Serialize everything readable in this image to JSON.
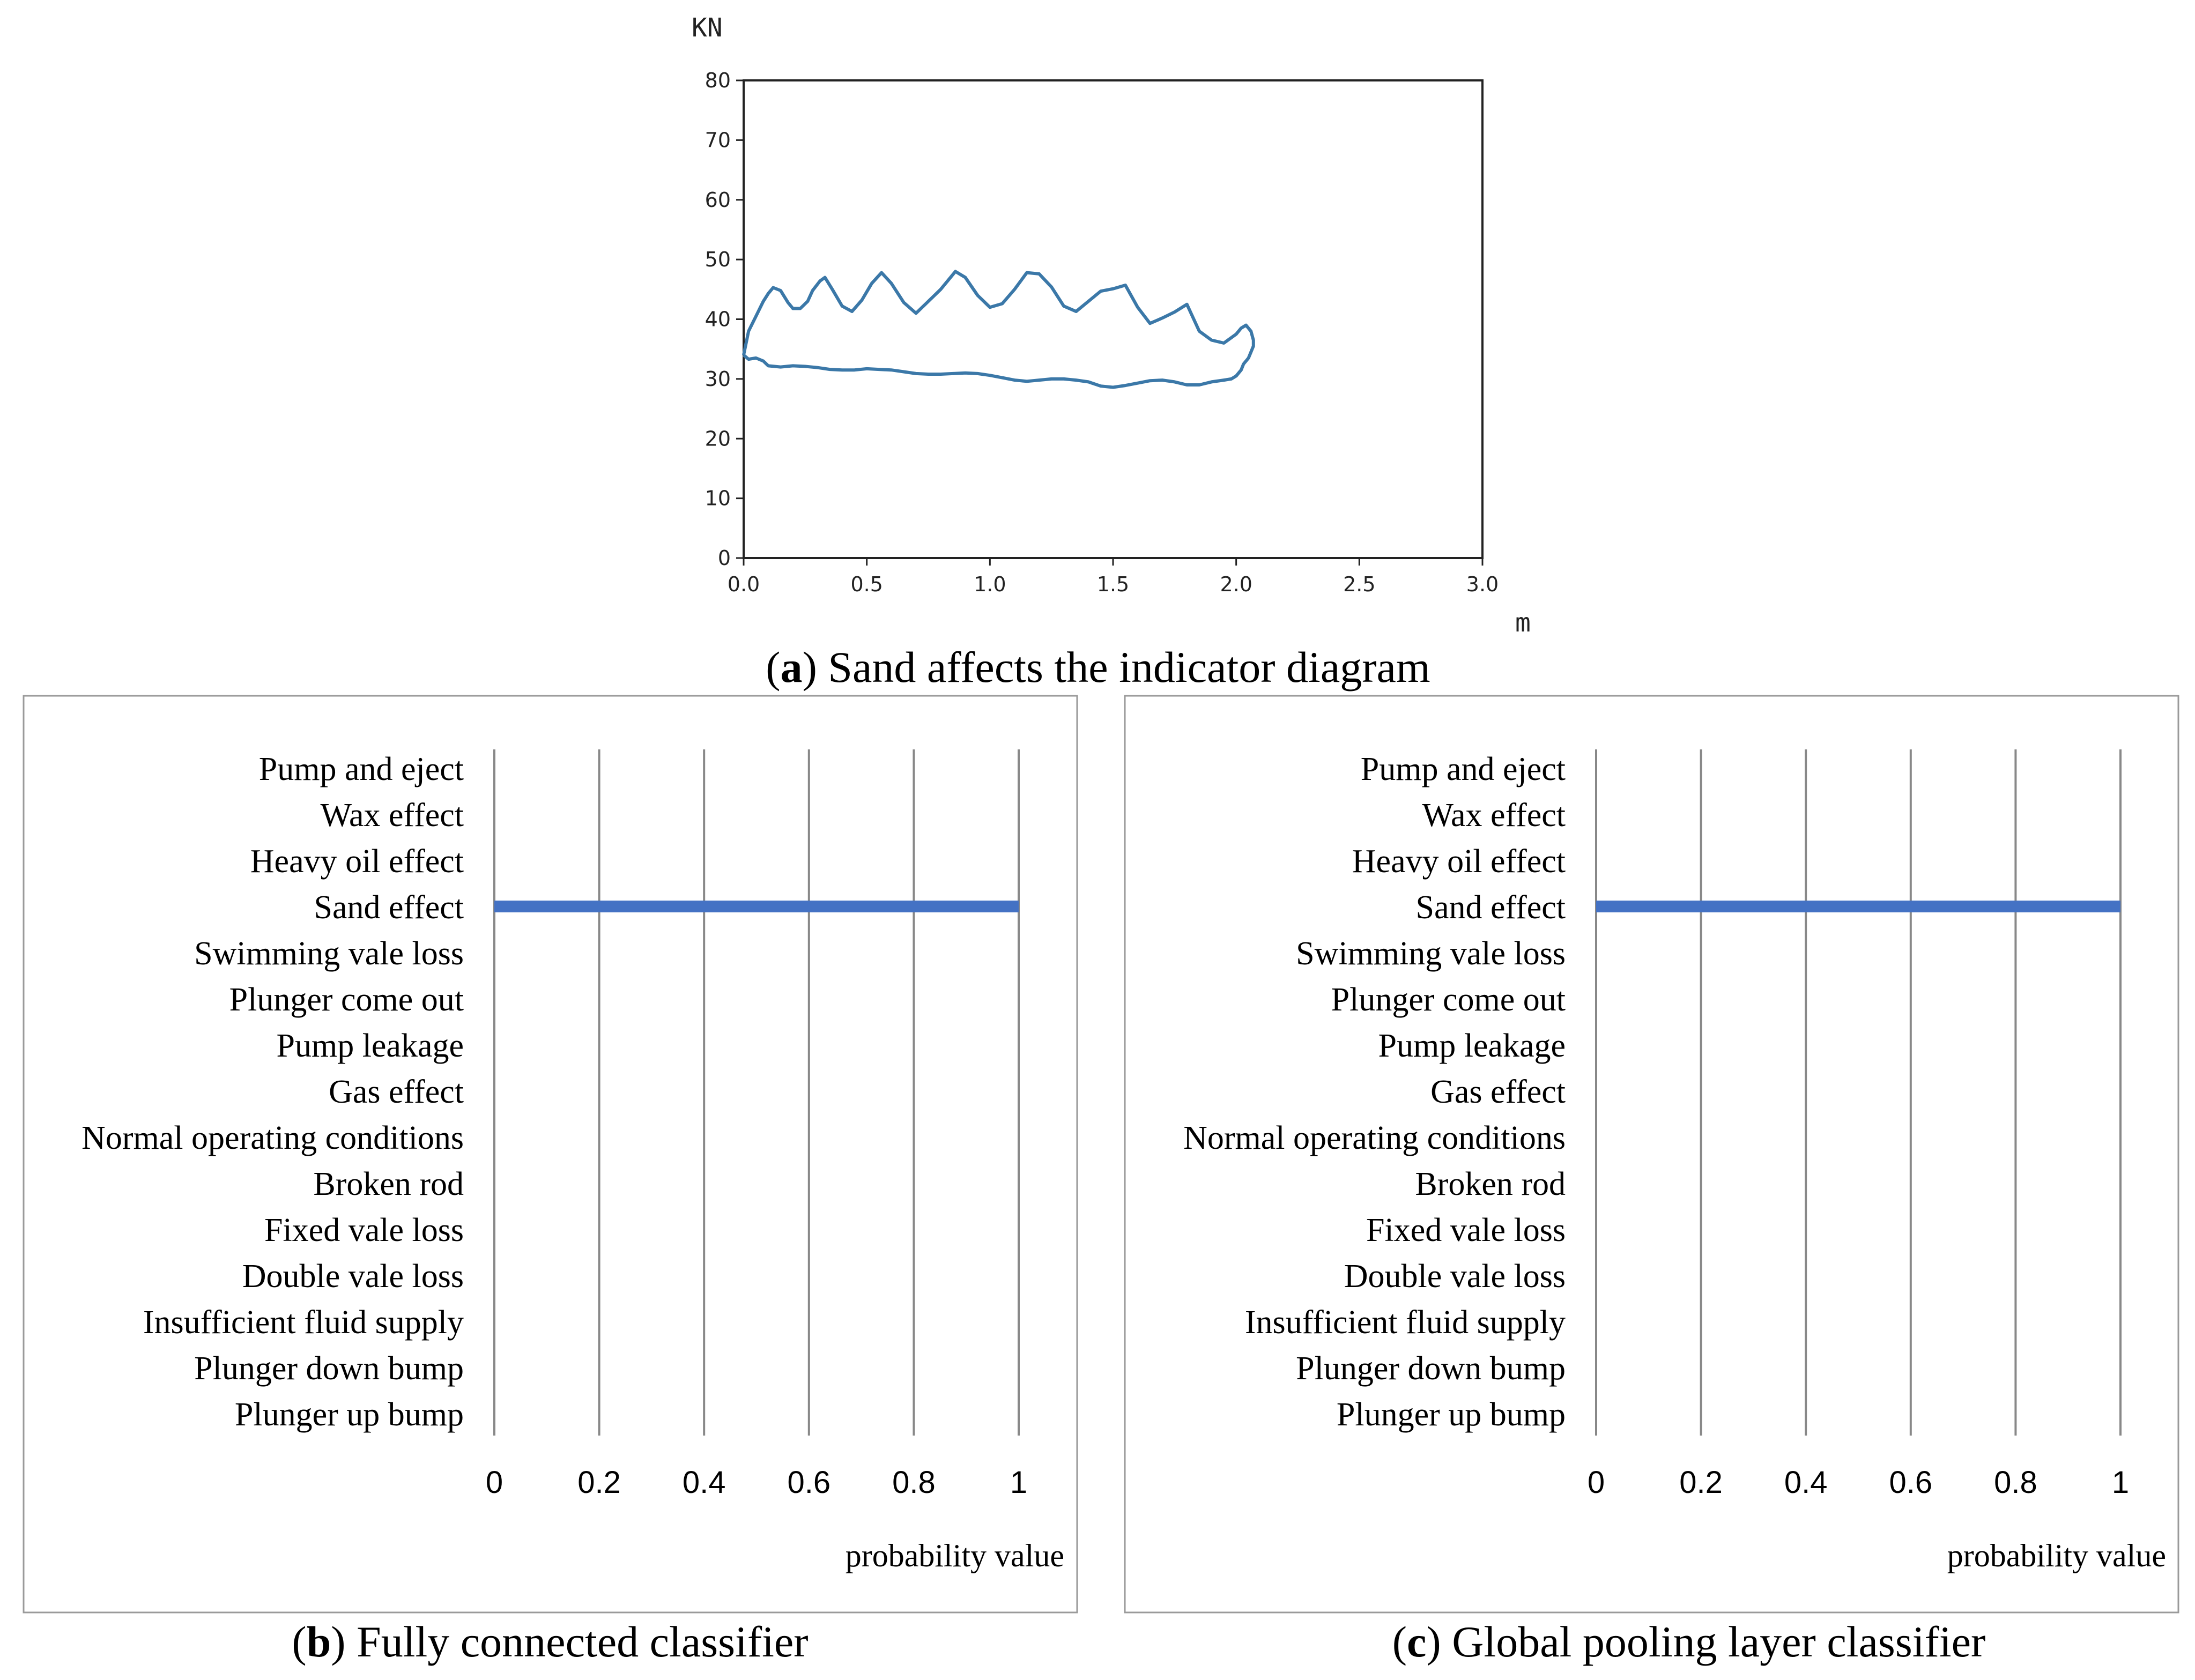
{
  "chart_data": [
    {
      "id": "a",
      "type": "line",
      "caption_letter": "a",
      "caption_text": " Sand affects the indicator diagram",
      "caption_open": "(",
      "caption_close": ")",
      "ylabel": "KN",
      "xlabel": "m",
      "xlim": [
        0,
        3.0
      ],
      "ylim": [
        0,
        80
      ],
      "xticks": [
        "0.0",
        "0.5",
        "1.0",
        "1.5",
        "2.0",
        "2.5",
        "3.0"
      ],
      "yticks": [
        "0",
        "10",
        "20",
        "30",
        "40",
        "50",
        "60",
        "70",
        "80"
      ],
      "color": "#3b78a8",
      "series": [
        {
          "name": "indicator",
          "x": [
            0.0,
            0.02,
            0.05,
            0.08,
            0.1,
            0.12,
            0.15,
            0.18,
            0.2,
            0.23,
            0.26,
            0.28,
            0.31,
            0.33,
            0.36,
            0.4,
            0.44,
            0.48,
            0.52,
            0.56,
            0.6,
            0.65,
            0.7,
            0.75,
            0.8,
            0.86,
            0.9,
            0.95,
            1.0,
            1.05,
            1.1,
            1.15,
            1.2,
            1.25,
            1.3,
            1.35,
            1.4,
            1.45,
            1.5,
            1.55,
            1.6,
            1.65,
            1.7,
            1.75,
            1.8,
            1.85,
            1.9,
            1.95,
            2.0,
            2.02,
            2.04,
            2.06,
            2.07,
            2.07,
            2.06,
            2.05,
            2.04,
            2.03,
            2.02,
            2.0,
            1.98,
            1.95,
            1.9,
            1.85,
            1.8,
            1.75,
            1.7,
            1.65,
            1.6,
            1.55,
            1.5,
            1.45,
            1.4,
            1.35,
            1.3,
            1.25,
            1.2,
            1.15,
            1.1,
            1.05,
            1.0,
            0.95,
            0.9,
            0.85,
            0.8,
            0.75,
            0.7,
            0.65,
            0.6,
            0.55,
            0.5,
            0.45,
            0.4,
            0.35,
            0.3,
            0.25,
            0.2,
            0.15,
            0.1,
            0.08,
            0.05,
            0.02,
            0.0
          ],
          "y": [
            34.0,
            38.0,
            40.5,
            43.0,
            44.3,
            45.3,
            44.8,
            42.8,
            41.8,
            41.8,
            43.0,
            44.8,
            46.4,
            47.0,
            45.0,
            42.2,
            41.3,
            43.2,
            46.0,
            47.8,
            46.0,
            42.8,
            41.0,
            43.0,
            45.0,
            48.0,
            47.0,
            44.0,
            42.0,
            42.6,
            45.0,
            47.8,
            47.6,
            45.4,
            42.2,
            41.3,
            43.0,
            44.7,
            45.1,
            45.7,
            42.0,
            39.3,
            40.2,
            41.2,
            42.5,
            38.0,
            36.5,
            36.0,
            37.5,
            38.5,
            39.0,
            38.0,
            36.5,
            35.5,
            34.5,
            33.5,
            33.0,
            32.5,
            31.5,
            30.5,
            30.0,
            29.8,
            29.5,
            29.0,
            29.0,
            29.5,
            29.8,
            29.7,
            29.3,
            28.9,
            28.6,
            28.8,
            29.5,
            29.8,
            30.0,
            30.0,
            29.8,
            29.6,
            29.8,
            30.2,
            30.6,
            30.9,
            31.0,
            30.9,
            30.8,
            30.8,
            30.9,
            31.2,
            31.5,
            31.6,
            31.7,
            31.5,
            31.5,
            31.6,
            31.9,
            32.1,
            32.2,
            32.0,
            32.2,
            33.0,
            33.5,
            33.3,
            34.0
          ]
        }
      ]
    },
    {
      "id": "b",
      "type": "bar",
      "orientation": "horizontal",
      "caption_letter": "b",
      "caption_text": " Fully connected classifier",
      "caption_open": "(",
      "caption_close": ")",
      "xlabel": "probability value",
      "xlim": [
        0,
        1
      ],
      "xticks": [
        "0",
        "0.2",
        "0.4",
        "0.6",
        "0.8",
        "1"
      ],
      "color": "#4472c4",
      "categories": [
        "Pump and eject",
        "Wax effect",
        "Heavy oil effect",
        "Sand effect",
        "Swimming vale loss",
        "Plunger come out",
        "Pump leakage",
        "Gas effect",
        "Normal operating conditions",
        "Broken rod",
        "Fixed vale loss",
        "Double vale loss",
        "Insufficient fluid supply",
        "Plunger down bump",
        "Plunger up bump"
      ],
      "values": [
        0,
        0,
        0,
        1,
        0,
        0,
        0,
        0,
        0,
        0,
        0,
        0,
        0,
        0,
        0
      ]
    },
    {
      "id": "c",
      "type": "bar",
      "orientation": "horizontal",
      "caption_letter": "c",
      "caption_text": " Global pooling layer classifier",
      "caption_open": "(",
      "caption_close": ")",
      "xlabel": "probability value",
      "xlim": [
        0,
        1
      ],
      "xticks": [
        "0",
        "0.2",
        "0.4",
        "0.6",
        "0.8",
        "1"
      ],
      "color": "#4472c4",
      "categories": [
        "Pump and eject",
        "Wax effect",
        "Heavy oil effect",
        "Sand effect",
        "Swimming vale loss",
        "Plunger come out",
        "Pump leakage",
        "Gas effect",
        "Normal operating conditions",
        "Broken rod",
        "Fixed vale loss",
        "Double vale loss",
        "Insufficient fluid supply",
        "Plunger down bump",
        "Plunger up bump"
      ],
      "values": [
        0,
        0,
        0,
        1,
        0,
        0,
        0,
        0,
        0,
        0,
        0,
        0,
        0,
        0,
        0
      ]
    }
  ]
}
